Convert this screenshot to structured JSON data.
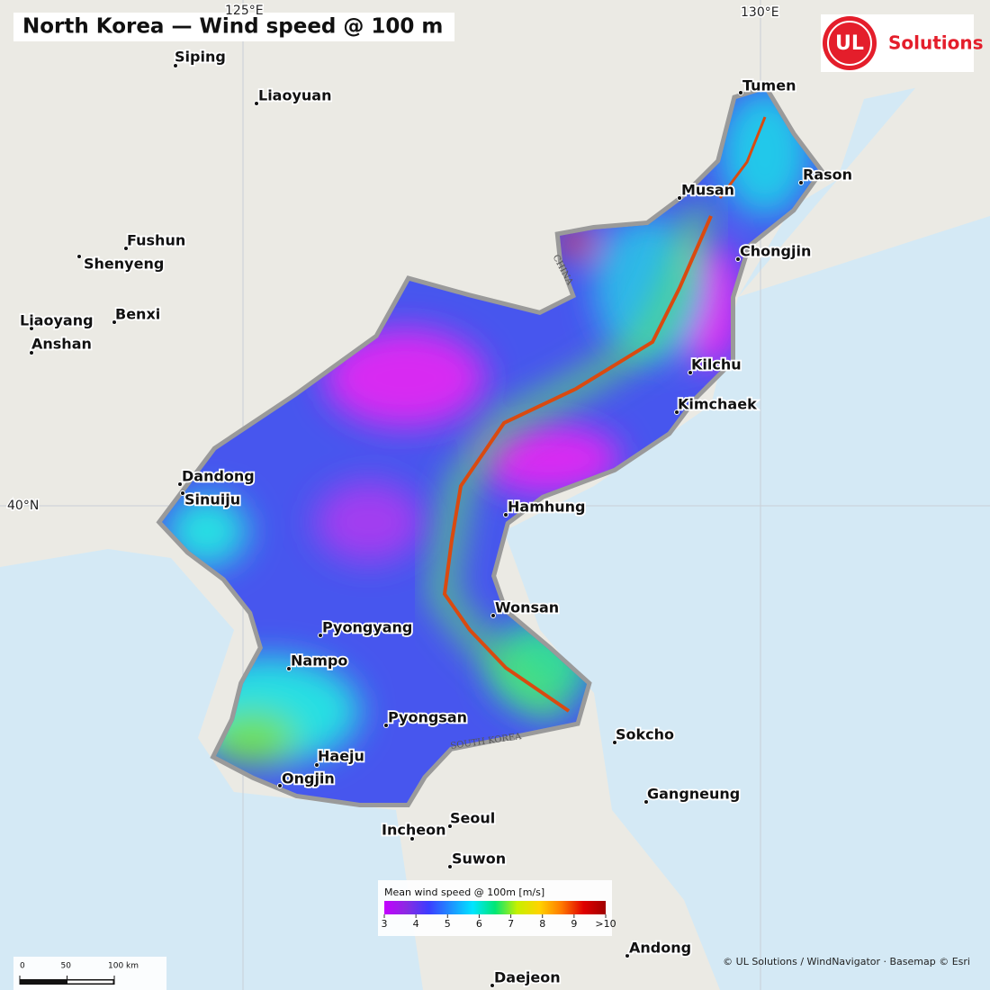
{
  "title": "North Korea — Wind speed @ 100 m",
  "logo": {
    "brand": "UL",
    "name": "Solutions"
  },
  "graticule": [
    "125°E",
    "130°E",
    "40°N"
  ],
  "cities": [
    "Siping",
    "Liaoyuan",
    "Fushun",
    "Shenyeng",
    "Liaoyang",
    "Benxi",
    "Anshan",
    "Dandong",
    "Sinuiju",
    "Tumen",
    "Rason",
    "Musan",
    "Chongjin",
    "Kilchu",
    "Kimchaek",
    "Hamhung",
    "Wonsan",
    "Pyongyang",
    "Nampo",
    "Pyongsan",
    "Haeju",
    "Ongjin",
    "Sokcho",
    "Gangneung",
    "Seoul",
    "Incheon",
    "Suwon",
    "Andong",
    "Daejeon"
  ],
  "region_labels": [
    "SOUTH KOREA",
    "CHINA"
  ],
  "legend": {
    "title": "Mean wind speed @ 100m [m/s]",
    "range": [
      3,
      10
    ],
    "ticks": [
      3,
      4,
      5,
      6,
      7,
      8,
      9,
      {
        "value": 10,
        "label": ">10"
      }
    ],
    "colors": [
      "#c400ff",
      "#8a2be2",
      "#3c3cff",
      "#1e90ff",
      "#00e5ff",
      "#00e676",
      "#c6f000",
      "#ffd400",
      "#ff7a00",
      "#e00000",
      "#a00000"
    ]
  },
  "scale_bar": {
    "range": [
      0,
      100
    ],
    "ticks": [
      0,
      50,
      {
        "value": 100,
        "label": "100 km"
      }
    ]
  },
  "credit": "© UL Solutions / WindNavigator · Basemap © Esri"
}
